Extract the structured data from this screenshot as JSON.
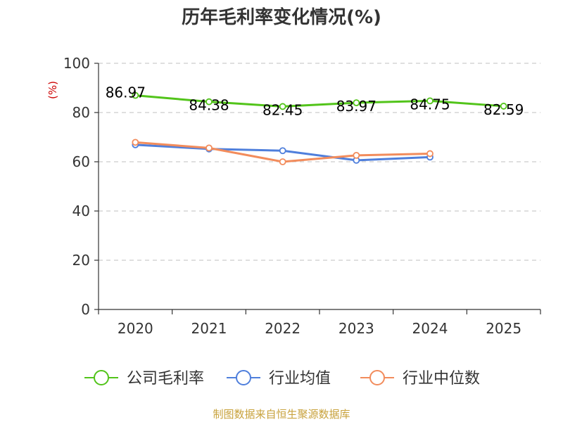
{
  "title": "历年毛利率变化情况(%)",
  "source": "制图数据来自恒生聚源数据库",
  "chart_data": {
    "type": "line",
    "title": "历年毛利率变化情况(%)",
    "ylabel": "(%)",
    "xlabel": "",
    "ylim": [
      0,
      100
    ],
    "yticks": [
      0,
      20,
      40,
      60,
      80,
      100
    ],
    "grid": true,
    "legend_position": "bottom",
    "categories": [
      "2020",
      "2021",
      "2022",
      "2023",
      "2024",
      "2025"
    ],
    "series": [
      {
        "name": "公司毛利率",
        "color": "#52c41a",
        "values": [
          86.97,
          84.38,
          82.45,
          83.97,
          84.75,
          82.59
        ],
        "labels": [
          "86.97",
          "84.38",
          "82.45",
          "83.97",
          "84.75",
          "82.59"
        ]
      },
      {
        "name": "行业均值",
        "color": "#4f7fdc",
        "values": [
          66.9,
          65.2,
          64.5,
          60.6,
          61.9,
          null
        ]
      },
      {
        "name": "行业中位数",
        "color": "#f28c5c",
        "values": [
          67.9,
          65.6,
          60.0,
          62.6,
          63.3,
          null
        ]
      }
    ]
  }
}
